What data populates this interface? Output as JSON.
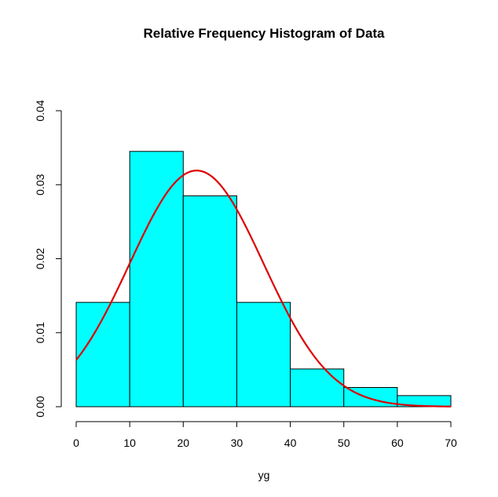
{
  "chart_data": {
    "type": "bar",
    "title": "Relative Frequency Histogram of Data",
    "xlabel": "yg",
    "ylabel": "",
    "xlim": [
      0,
      70
    ],
    "ylim": [
      0,
      0.04
    ],
    "x_ticks": [
      "0",
      "10",
      "20",
      "30",
      "40",
      "50",
      "60",
      "70"
    ],
    "y_ticks": [
      "0.00",
      "0.01",
      "0.02",
      "0.03",
      "0.04"
    ],
    "bins": [
      {
        "start": 0,
        "end": 10,
        "value": 0.0141
      },
      {
        "start": 10,
        "end": 20,
        "value": 0.0345
      },
      {
        "start": 20,
        "end": 30,
        "value": 0.0285
      },
      {
        "start": 30,
        "end": 40,
        "value": 0.0141
      },
      {
        "start": 40,
        "end": 50,
        "value": 0.0051
      },
      {
        "start": 50,
        "end": 60,
        "value": 0.0026
      },
      {
        "start": 60,
        "end": 70,
        "value": 0.0015
      }
    ],
    "curve": {
      "name": "normal density",
      "mean": 22.5,
      "sd": 12.5
    },
    "colors": {
      "bar_fill": "#00ffff",
      "curve": "#dd0000"
    }
  }
}
